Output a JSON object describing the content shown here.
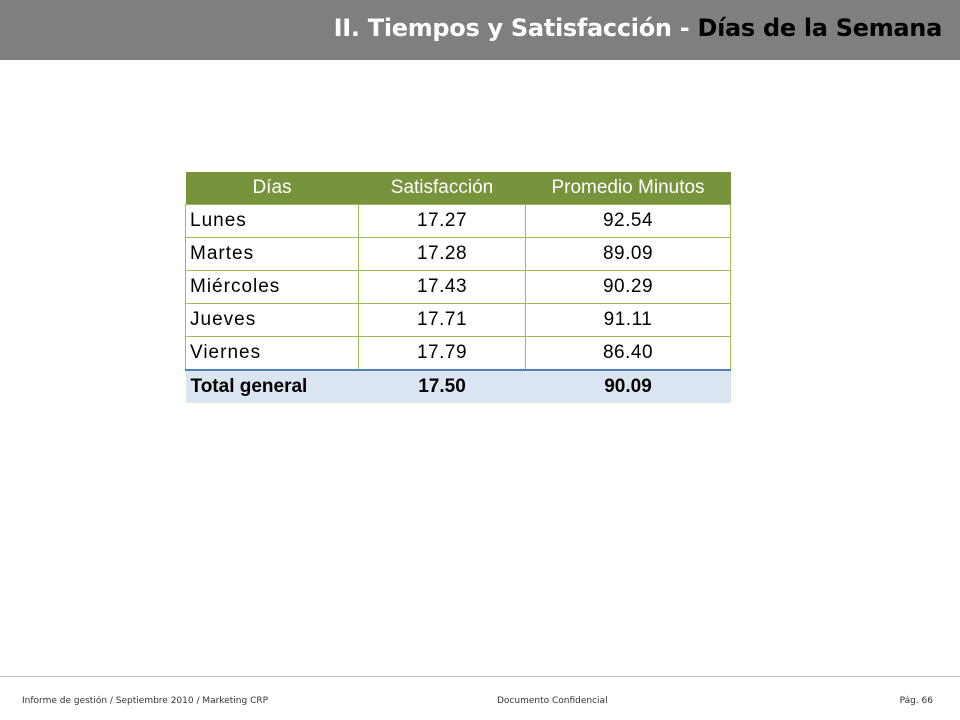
{
  "header": {
    "title_main": "II. Tiempos y  Satisfacción -",
    "title_sub": "Días de la Semana",
    "bar_color": "#7f7f7f"
  },
  "table": {
    "header_color": "#77933c",
    "total_row_color": "#dbe5f1",
    "columns": [
      "Días",
      "Satisfacción",
      "Promedio Minutos"
    ],
    "rows": [
      [
        "Lunes",
        "17.27",
        "92.54"
      ],
      [
        "Martes",
        "17.28",
        "89.09"
      ],
      [
        "Miércoles",
        "17.43",
        "90.29"
      ],
      [
        "Jueves",
        "17.71",
        "91.11"
      ],
      [
        "Viernes",
        "17.79",
        "86.40"
      ]
    ],
    "total": [
      "Total general",
      "17.50",
      "90.09"
    ]
  },
  "footer": {
    "left": "Informe de gestión / Septiembre 2010 / Marketing CRP",
    "center": "Documento Confidencial",
    "right": "Pág. 66"
  }
}
